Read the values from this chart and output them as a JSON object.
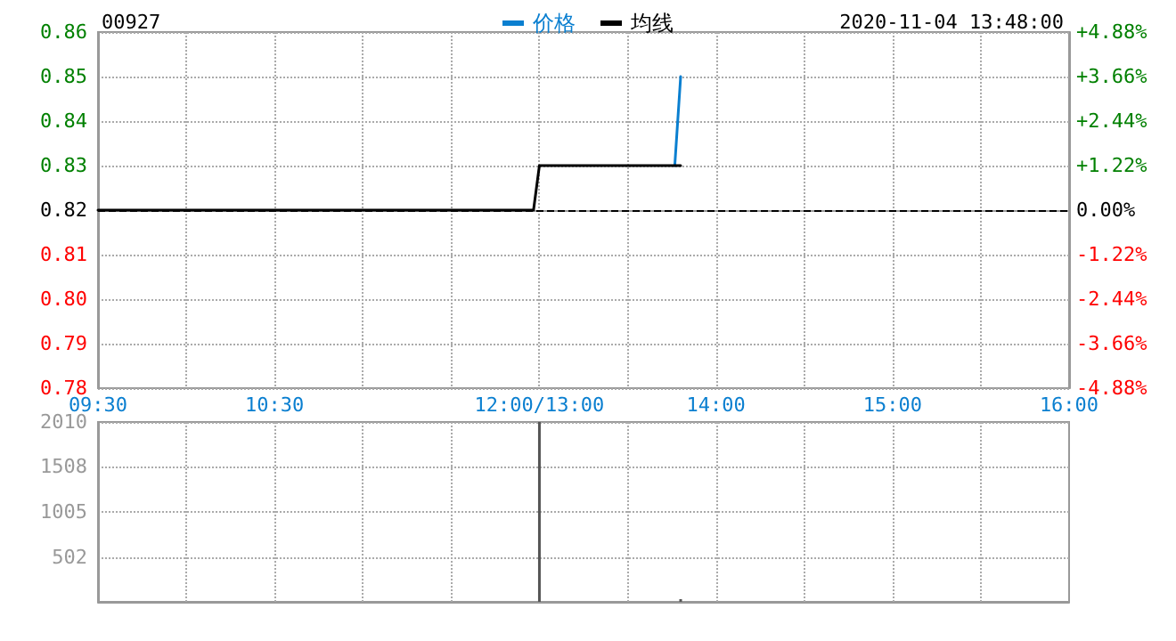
{
  "chart_data": [
    {
      "type": "line",
      "title": "00927",
      "subtitle": "2020-11-04 13:48:00",
      "legend": "top",
      "grid": true,
      "marker": "none",
      "line_style": "solid",
      "categories": [
        "09:30",
        null,
        null,
        null,
        null,
        null,
        null,
        null,
        null,
        null,
        null,
        null,
        null,
        null,
        null,
        null,
        null,
        null,
        null,
        null,
        null,
        null,
        null,
        null,
        null,
        null,
        null,
        null,
        null,
        null,
        "10:30",
        null,
        null,
        null,
        null,
        null,
        null,
        null,
        null,
        null,
        null,
        null,
        null,
        null,
        null,
        null,
        null,
        null,
        null,
        null,
        null,
        null,
        null,
        null,
        null,
        null,
        null,
        null,
        null,
        null,
        null,
        null,
        null,
        null,
        null,
        null,
        null,
        null,
        null,
        null,
        null,
        null,
        null,
        null,
        null,
        "12:00/13:00",
        null,
        null,
        null,
        null,
        null,
        null,
        null,
        null,
        null,
        null,
        null,
        null,
        null,
        null,
        null,
        null,
        null,
        null,
        null,
        null,
        null,
        null,
        null,
        null,
        null,
        null,
        null,
        null,
        null,
        "14:00",
        null,
        null,
        null,
        null,
        null,
        null,
        null,
        null,
        null,
        null,
        null,
        null,
        null,
        null,
        null,
        null,
        null,
        null,
        null,
        null,
        null,
        null,
        null,
        null,
        null,
        null,
        null,
        null,
        null,
        "15:00",
        null,
        null,
        null,
        null,
        null,
        null,
        null,
        null,
        null,
        null,
        null,
        null,
        null,
        null,
        null,
        null,
        null,
        null,
        null,
        null,
        null,
        null,
        null,
        null,
        null,
        null,
        null,
        null,
        null,
        "16:00"
      ],
      "ylim": [
        0.78,
        0.86
      ],
      "yticks": [
        0.78,
        0.79,
        {
          "value": 0.8,
          "label": "0.80"
        },
        0.81,
        0.82,
        0.83,
        0.84,
        0.85,
        0.86
      ],
      "y2lim": [
        -4.88,
        4.88
      ],
      "y2ticks": [
        {
          "value": -4.88,
          "label": "-4.88%"
        },
        {
          "value": -3.66,
          "label": "-3.66%"
        },
        {
          "value": -2.44,
          "label": "-2.44%"
        },
        {
          "value": -1.22,
          "label": "-1.22%"
        },
        {
          "value": 0,
          "label": "0.00%"
        },
        {
          "value": 1.22,
          "label": "+1.22%"
        },
        {
          "value": 2.44,
          "label": "+2.44%"
        },
        {
          "value": 3.66,
          "label": "+3.66%"
        },
        {
          "value": 4.88,
          "label": "+4.88%"
        }
      ],
      "ref_lines": [
        {
          "axis": "y",
          "value": 0.82,
          "color": "#000000",
          "line_style": "dashed"
        }
      ],
      "series": [
        {
          "name": "价格",
          "color": "#0a7fd0",
          "values": [
            null,
            null,
            null,
            null,
            null,
            null,
            null,
            null,
            null,
            null,
            null,
            null,
            null,
            null,
            null,
            null,
            null,
            null,
            null,
            null,
            null,
            null,
            null,
            null,
            null,
            null,
            null,
            null,
            null,
            null,
            null,
            null,
            null,
            null,
            null,
            null,
            null,
            null,
            null,
            null,
            null,
            null,
            null,
            null,
            null,
            null,
            null,
            null,
            null,
            null,
            null,
            null,
            null,
            null,
            null,
            null,
            null,
            null,
            null,
            null,
            null,
            null,
            null,
            null,
            null,
            null,
            null,
            null,
            null,
            null,
            null,
            null,
            null,
            null,
            null,
            null,
            null,
            null,
            null,
            null,
            null,
            null,
            null,
            null,
            null,
            null,
            null,
            null,
            null,
            null,
            null,
            null,
            null,
            null,
            null,
            null,
            null,
            null,
            0.83,
            0.85,
            null,
            null,
            null,
            null,
            null,
            null,
            null,
            null,
            null,
            null,
            null,
            null,
            null,
            null,
            null,
            null,
            null,
            null,
            null,
            null,
            null,
            null,
            null,
            null,
            null,
            null,
            null,
            null,
            null,
            null,
            null,
            null,
            null,
            null,
            null,
            null,
            null,
            null,
            null,
            null,
            null,
            null,
            null,
            null,
            null,
            null,
            null,
            null,
            null,
            null,
            null,
            null,
            null,
            null,
            null,
            null,
            null,
            null,
            null,
            null,
            null,
            null,
            null,
            null,
            null,
            null
          ]
        },
        {
          "name": "均线",
          "color": "#000000",
          "values": [
            0.82,
            0.82,
            0.82,
            0.82,
            0.82,
            0.82,
            0.82,
            0.82,
            0.82,
            0.82,
            0.82,
            0.82,
            0.82,
            0.82,
            0.82,
            0.82,
            0.82,
            0.82,
            0.82,
            0.82,
            0.82,
            0.82,
            0.82,
            0.82,
            0.82,
            0.82,
            0.82,
            0.82,
            0.82,
            0.82,
            0.82,
            0.82,
            0.82,
            0.82,
            0.82,
            0.82,
            0.82,
            0.82,
            0.82,
            0.82,
            0.82,
            0.82,
            0.82,
            0.82,
            0.82,
            0.82,
            0.82,
            0.82,
            0.82,
            0.82,
            0.82,
            0.82,
            0.82,
            0.82,
            0.82,
            0.82,
            0.82,
            0.82,
            0.82,
            0.82,
            0.82,
            0.82,
            0.82,
            0.82,
            0.82,
            0.82,
            0.82,
            0.82,
            0.82,
            0.82,
            0.82,
            0.82,
            0.82,
            0.82,
            0.82,
            0.83,
            0.83,
            0.83,
            0.83,
            0.83,
            0.83,
            0.83,
            0.83,
            0.83,
            0.83,
            0.83,
            0.83,
            0.83,
            0.83,
            0.83,
            0.83,
            0.83,
            0.83,
            0.83,
            0.83,
            0.83,
            0.83,
            0.83,
            0.83,
            0.83,
            null,
            null,
            null,
            null,
            null,
            null,
            null,
            null,
            null,
            null,
            null,
            null,
            null,
            null,
            null,
            null,
            null,
            null,
            null,
            null,
            null,
            null,
            null,
            null,
            null,
            null,
            null,
            null,
            null,
            null,
            null,
            null,
            null,
            null,
            null,
            null,
            null,
            null,
            null,
            null,
            null,
            null,
            null,
            null,
            null,
            null,
            null,
            null,
            null,
            null,
            null,
            null,
            null,
            null,
            null,
            null,
            null,
            null,
            null,
            null,
            null,
            null,
            null,
            null,
            null,
            null
          ]
        }
      ]
    },
    {
      "type": "bar",
      "grid": true,
      "categories": [
        null,
        null,
        null,
        null,
        null,
        null,
        null,
        null,
        null,
        null,
        null,
        null,
        null,
        null,
        null,
        null,
        null,
        null,
        null,
        null,
        null,
        null,
        null,
        null,
        null,
        null,
        null,
        null,
        null,
        null,
        null,
        null,
        null,
        null,
        null,
        null,
        null,
        null,
        null,
        null,
        null,
        null,
        null,
        null,
        null,
        null,
        null,
        null,
        null,
        null,
        null,
        null,
        null,
        null,
        null,
        null,
        null,
        null,
        null,
        null,
        null,
        null,
        null,
        null,
        null,
        null,
        null,
        null,
        null,
        null,
        null,
        null,
        null,
        null,
        null,
        null,
        null,
        null,
        null,
        null,
        null,
        null,
        null,
        null,
        null,
        null,
        null,
        null,
        null,
        null,
        null,
        null,
        null,
        null,
        null,
        null,
        null,
        null,
        null,
        null,
        null,
        null,
        null,
        null,
        null,
        null,
        null,
        null,
        null,
        null,
        null,
        null,
        null,
        null,
        null,
        null,
        null,
        null,
        null,
        null,
        null,
        null,
        null,
        null,
        null,
        null,
        null,
        null,
        null,
        null,
        null,
        null,
        null,
        null,
        null,
        null,
        null,
        null,
        null,
        null,
        null,
        null,
        null,
        null,
        null,
        null,
        null,
        null,
        null,
        null,
        null,
        null,
        null,
        null,
        null,
        null,
        null,
        null,
        null,
        null,
        null,
        null,
        null,
        null,
        null,
        null
      ],
      "ylim": [
        0,
        2010
      ],
      "yticks": [
        {
          "value": 0,
          "label": null
        },
        502,
        1005,
        1508,
        2010
      ],
      "series": [
        {
          "color": "#555555",
          "values": [
            null,
            null,
            null,
            null,
            null,
            null,
            null,
            null,
            null,
            null,
            null,
            null,
            null,
            null,
            null,
            null,
            null,
            null,
            null,
            null,
            null,
            null,
            null,
            null,
            null,
            null,
            null,
            null,
            null,
            null,
            null,
            null,
            null,
            null,
            null,
            null,
            null,
            null,
            null,
            null,
            null,
            null,
            null,
            null,
            null,
            null,
            null,
            null,
            null,
            null,
            null,
            null,
            null,
            null,
            null,
            null,
            null,
            null,
            null,
            null,
            null,
            null,
            null,
            null,
            null,
            null,
            null,
            null,
            null,
            null,
            null,
            null,
            null,
            null,
            null,
            2010,
            null,
            null,
            null,
            null,
            null,
            null,
            null,
            null,
            null,
            null,
            null,
            null,
            null,
            null,
            null,
            null,
            null,
            null,
            null,
            null,
            null,
            null,
            null,
            30,
            null,
            null,
            null,
            null,
            null,
            null,
            null,
            null,
            null,
            null,
            null,
            null,
            null,
            null,
            null,
            null,
            null,
            null,
            null,
            null,
            null,
            null,
            null,
            null,
            null,
            null,
            null,
            null,
            null,
            null,
            null,
            null,
            null,
            null,
            null,
            null,
            null,
            null,
            null,
            null,
            null,
            null,
            null,
            null,
            null,
            null,
            null,
            null,
            null,
            null,
            null,
            null,
            null,
            null,
            null,
            null,
            null,
            null,
            null,
            null,
            null,
            null,
            null,
            null,
            null,
            null
          ]
        }
      ]
    }
  ]
}
